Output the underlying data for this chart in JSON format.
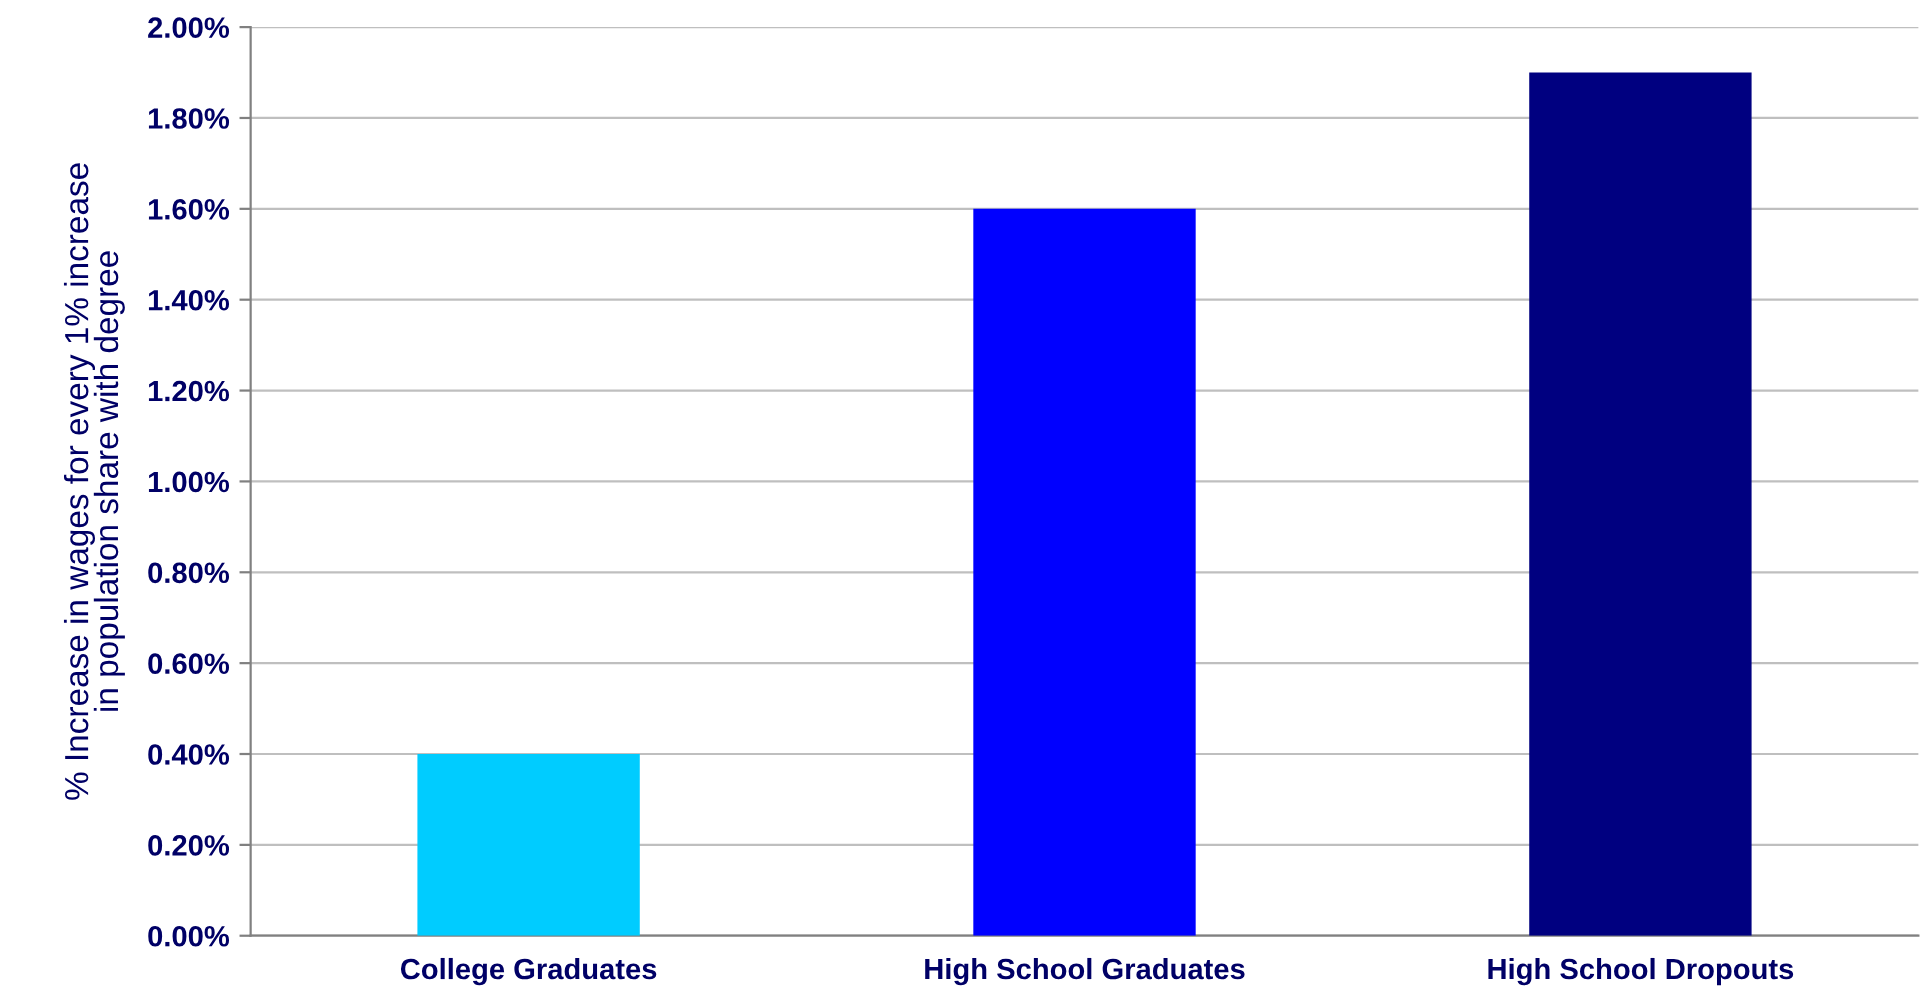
{
  "chart_data": {
    "type": "bar",
    "ylabel": "% Increase in wages for every 1% increase\nin population share with degree",
    "categories": [
      "College Graduates",
      "High School Graduates",
      "High School Dropouts"
    ],
    "values": [
      0.4,
      1.6,
      1.9
    ],
    "colors": [
      "#00ccff",
      "#0000ff",
      "#000080"
    ],
    "ylim": [
      0,
      2
    ],
    "yticks": [
      {
        "value": 0,
        "label": "0.00%"
      },
      {
        "value": 0.2,
        "label": "0.20%"
      },
      {
        "value": 0.4,
        "label": "0.40%"
      },
      {
        "value": 0.6,
        "label": "0.60%"
      },
      {
        "value": 0.8,
        "label": "0.80%"
      },
      {
        "value": 1.0,
        "label": "1.00%"
      },
      {
        "value": 1.2,
        "label": "1.20%"
      },
      {
        "value": 1.4,
        "label": "1.40%"
      },
      {
        "value": 1.6,
        "label": "1.60%"
      },
      {
        "value": 1.8,
        "label": "1.80%"
      },
      {
        "value": 2.0,
        "label": "2.00%"
      }
    ],
    "grid": "y",
    "legend": false
  }
}
